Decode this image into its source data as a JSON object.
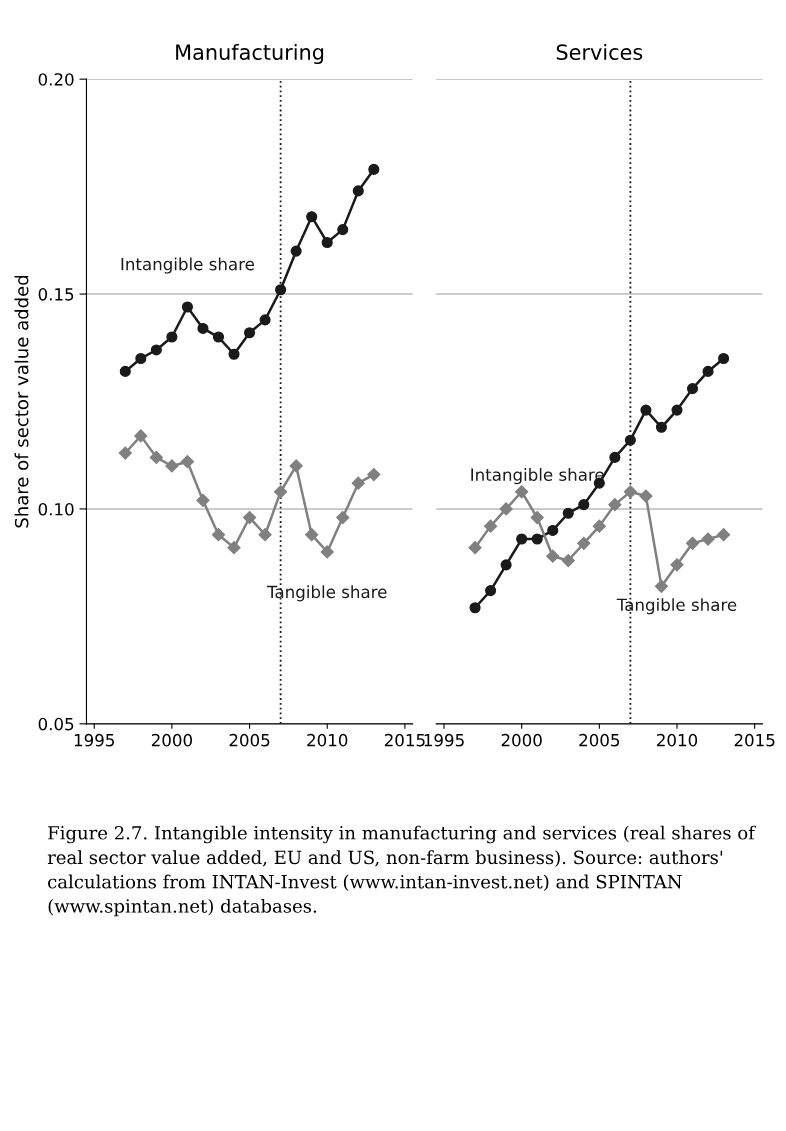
{
  "chart_data": [
    {
      "type": "line",
      "title": "Manufacturing",
      "ylabel": "Share of sector value added",
      "x": [
        1997,
        1998,
        1999,
        2000,
        2001,
        2002,
        2003,
        2004,
        2005,
        2006,
        2007,
        2008,
        2009,
        2010,
        2011,
        2012,
        2013
      ],
      "series": [
        {
          "name": "Intangible share",
          "color": "#1a1a1a",
          "marker": "circle",
          "values": [
            0.132,
            0.135,
            0.137,
            0.14,
            0.147,
            0.142,
            0.14,
            0.136,
            0.141,
            0.144,
            0.151,
            0.16,
            0.168,
            0.162,
            0.165,
            0.174,
            0.179
          ]
        },
        {
          "name": "Tangible share",
          "color": "#808080",
          "marker": "diamond",
          "values": [
            0.113,
            0.117,
            0.112,
            0.11,
            0.111,
            0.102,
            0.094,
            0.091,
            0.098,
            0.094,
            0.104,
            0.11,
            0.094,
            0.09,
            0.098,
            0.106,
            0.108
          ]
        }
      ],
      "xlim": [
        1994.5,
        2015.5
      ],
      "xticks": [
        1995,
        2000,
        2005,
        2010,
        2015
      ],
      "ylim": [
        0.05,
        0.2
      ],
      "yticks": [
        {
          "value": 0.05,
          "label": "0.05"
        },
        {
          "value": 0.1,
          "label": "0.10"
        },
        {
          "value": 0.15,
          "label": "0.15"
        },
        {
          "value": 0.2,
          "label": "0.20"
        }
      ],
      "grid": "y",
      "ref_lines": [
        {
          "axis": "x",
          "value": 2007,
          "line_style": "dotted",
          "color": "#1a1a1a"
        }
      ],
      "annotations": [
        "Figure 2.7. Intangible intensity in manufacturing and services (real shares of real sector value added, EU and US, non-farm business). Source: authors' calculations from INTAN-Invest (www.intan-invest.net) and SPINTAN (www.spintan.net) databases."
      ]
    },
    {
      "type": "line",
      "title": "Services",
      "x": [
        1997,
        1998,
        1999,
        2000,
        2001,
        2002,
        2003,
        2004,
        2005,
        2006,
        2007,
        2008,
        2009,
        2010,
        2011,
        2012,
        2013
      ],
      "series": [
        {
          "name": "Intangible share",
          "color": "#1a1a1a",
          "marker": "circle",
          "values": [
            0.077,
            0.081,
            0.087,
            0.093,
            0.093,
            0.095,
            0.099,
            0.101,
            0.106,
            0.112,
            0.116,
            0.123,
            0.119,
            0.123,
            0.128,
            0.132,
            0.135
          ]
        },
        {
          "name": "Tangible share",
          "color": "#808080",
          "marker": "diamond",
          "values": [
            0.091,
            0.096,
            0.1,
            0.104,
            0.098,
            0.089,
            0.088,
            0.092,
            0.096,
            0.101,
            0.104,
            0.103,
            0.082,
            0.087,
            0.092,
            0.093,
            0.094
          ]
        }
      ],
      "xlim": [
        1994.5,
        2015.5
      ],
      "xticks": [
        1995,
        2000,
        2005,
        2010,
        2015
      ],
      "ylim": [
        0.05,
        0.2
      ],
      "grid": "y",
      "tick_labels": "x",
      "yticks": [
        {
          "value": 0.05,
          "label": null
        },
        {
          "value": 0.1,
          "label": null
        },
        {
          "value": 0.15,
          "label": null
        },
        {
          "value": 0.2,
          "label": null
        }
      ],
      "ref_lines": [
        {
          "axis": "x",
          "value": 2007,
          "line_style": "dotted",
          "color": "#1a1a1a"
        }
      ]
    }
  ]
}
